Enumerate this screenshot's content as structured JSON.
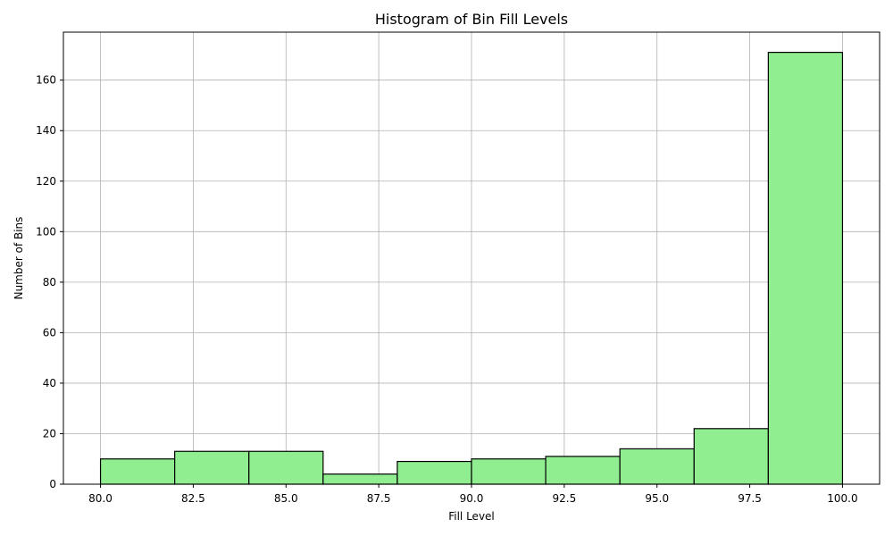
{
  "chart_data": {
    "type": "bar",
    "title": "Histogram of Bin Fill Levels",
    "xlabel": "Fill Level",
    "ylabel": "Number of Bins",
    "bin_edges": [
      80,
      82,
      84,
      86,
      88,
      90,
      92,
      94,
      96,
      98,
      100
    ],
    "values": [
      10,
      13,
      13,
      4,
      9,
      10,
      11,
      14,
      22,
      171
    ],
    "xlim": [
      79,
      101
    ],
    "ylim": [
      0,
      179
    ],
    "xticks": [
      80.0,
      82.5,
      85.0,
      87.5,
      90.0,
      92.5,
      95.0,
      97.5,
      100.0
    ],
    "xtick_labels": [
      "80.0",
      "82.5",
      "85.0",
      "87.5",
      "90.0",
      "92.5",
      "95.0",
      "97.5",
      "100.0"
    ],
    "yticks": [
      0,
      20,
      40,
      60,
      80,
      100,
      120,
      140,
      160
    ],
    "ytick_labels": [
      "0",
      "20",
      "40",
      "60",
      "80",
      "100",
      "120",
      "140",
      "160"
    ],
    "grid": true,
    "bar_color": "#90ee90",
    "bar_edge_color": "#000000",
    "grid_color": "#b0b0b0"
  }
}
